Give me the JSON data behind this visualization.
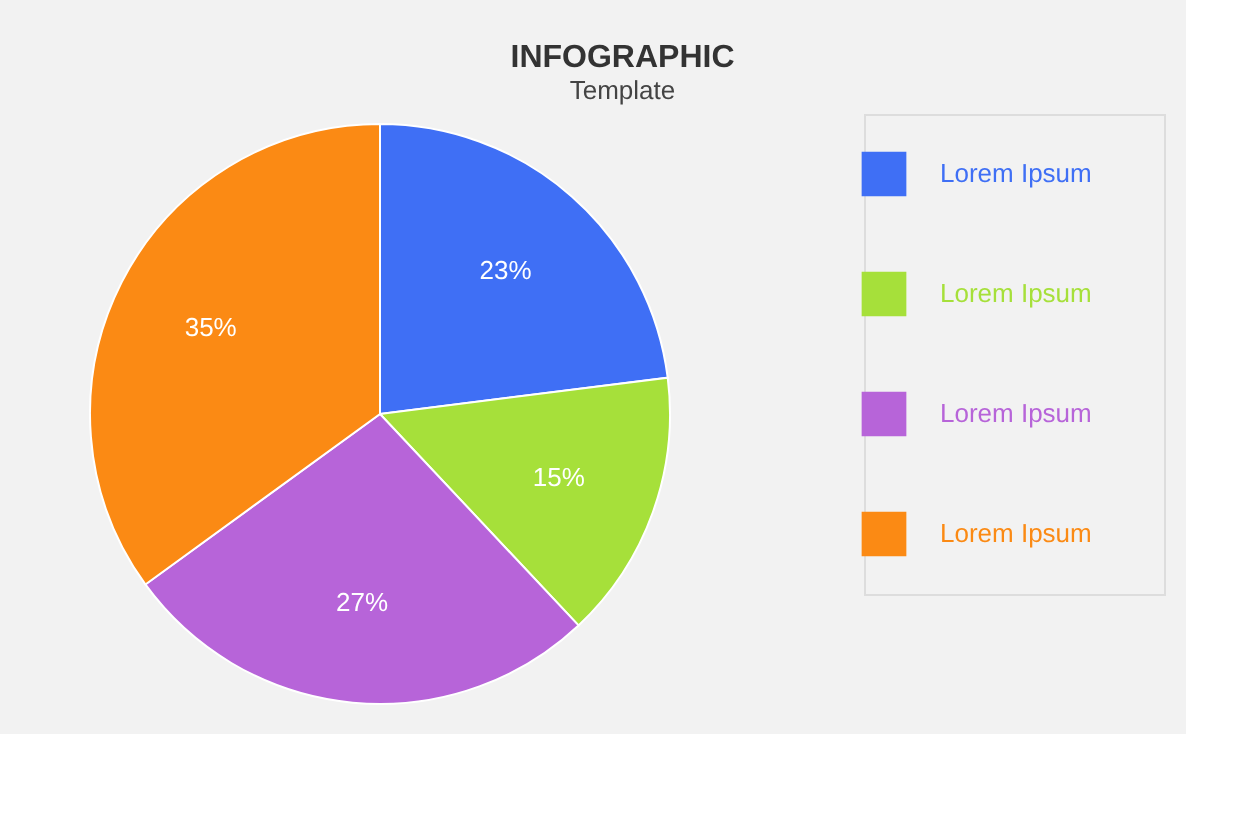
{
  "chart_data": {
    "type": "pie",
    "title": "INFOGRAPHIC",
    "subtitle": "Template",
    "categories": [
      "Lorem Ipsum",
      "Lorem Ipsum",
      "Lorem Ipsum",
      "Lorem Ipsum"
    ],
    "values": [
      23,
      15,
      27,
      35
    ],
    "colors": [
      "#3f6ff5",
      "#a6e03a",
      "#b764d9",
      "#fb8a14"
    ],
    "value_labels": [
      "23%",
      "15%",
      "27%",
      "35%"
    ],
    "legend": "right"
  }
}
